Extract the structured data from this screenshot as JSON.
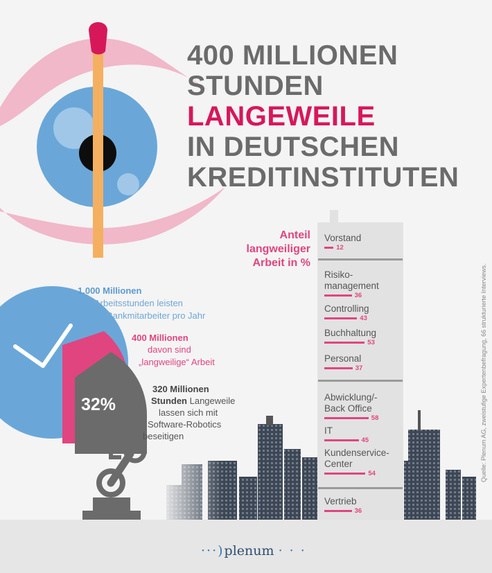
{
  "title": {
    "line1": "400 MILLIONEN",
    "line2": "STUNDEN",
    "line3": "LANGEWEILE",
    "line4": "IN DEUTSCHEN",
    "line5": "KREDITINSTITUTEN"
  },
  "chart_data": {
    "type": "bar",
    "title": "Anteil langweiliger Arbeit in %",
    "title_lines": [
      "Anteil",
      "langweiliger",
      "Arbeit in %"
    ],
    "categories": [
      [
        "Vorstand"
      ],
      [
        "Risiko-",
        "management"
      ],
      [
        "Controlling"
      ],
      [
        "Buchhaltung"
      ],
      [
        "Personal"
      ],
      [
        "Abwicklung/-",
        "Back Office"
      ],
      [
        "IT"
      ],
      [
        "Kundenservice-",
        "Center"
      ],
      [
        "Vertrieb"
      ]
    ],
    "values": [
      12,
      36,
      43,
      53,
      37,
      58,
      45,
      54,
      36
    ],
    "value_labels": [
      "12",
      "36",
      "43",
      "53",
      "37",
      "58",
      "45",
      "54",
      "36"
    ],
    "xlim": [
      0,
      100
    ]
  },
  "stats": {
    "total": {
      "headline": "1.000 Millionen",
      "line1": "Arbeitsstunden leisten",
      "line2": "Bankmitarbeiter pro Jahr"
    },
    "boring": {
      "headline": "400 Millionen",
      "line1": "davon sind",
      "line2": "„langweilige“ Arbeit"
    },
    "automatable": {
      "headline1": "320 Millionen",
      "headline2": "Stunden",
      "rest2": " Langeweile",
      "line3": "lassen sich mit",
      "line4": "Software-Robotics",
      "line5": "beseitigen"
    },
    "percent_label": "32%"
  },
  "source": "Quelle: Plenum AG, zweistufige Expertenbefragung, 66 strukturierte Interviews.",
  "logo": {
    "prefix": "···)",
    "name": "plenum",
    "suffix": "· · ·"
  },
  "colors": {
    "pink": "#e0457f",
    "headline_pink": "#d6185a",
    "blue": "#6aa7d8",
    "grey": "#6b6b6b"
  }
}
